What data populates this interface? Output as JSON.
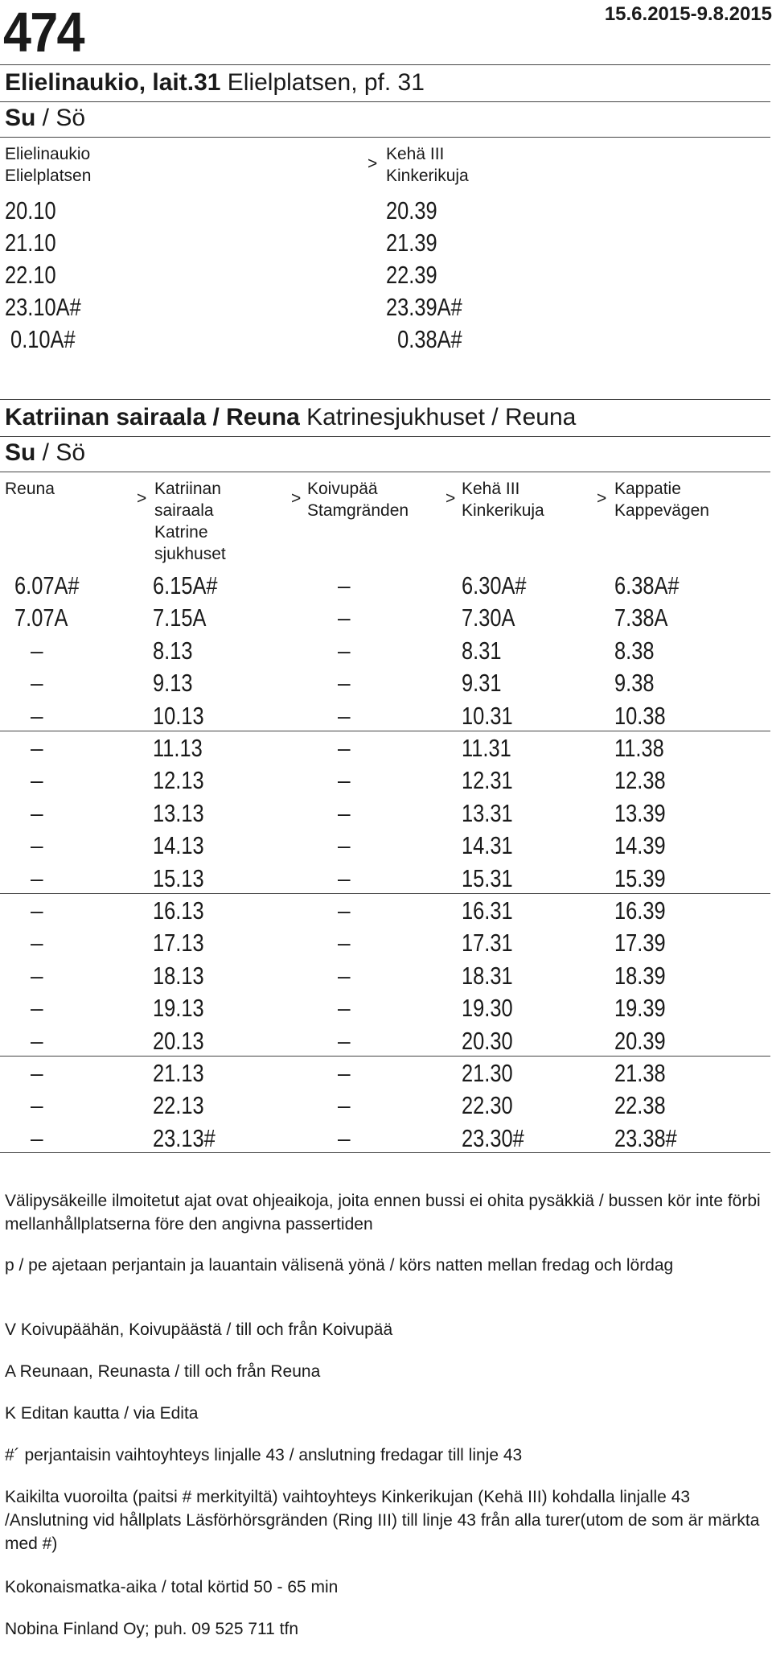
{
  "header": {
    "route_number": "474",
    "validity": "15.6.2015-9.8.2015"
  },
  "section1": {
    "stop_title_bold": "Elielinaukio, lait.31",
    "stop_title_rest": " Elielplatsen, pf. 31",
    "day_bold": "Su",
    "day_rest": " / Sö",
    "columns": [
      {
        "line1": "Elielinaukio",
        "line2": "Elielplatsen"
      },
      {
        "line1": "Kehä III",
        "line2": "Kinkerikuja"
      }
    ],
    "arrow": ">",
    "rows": [
      [
        "20.10",
        "20.39"
      ],
      [
        "21.10",
        "21.39"
      ],
      [
        "22.10",
        "22.39"
      ],
      [
        "23.10A#",
        "23.39A#"
      ],
      [
        " 0.10A#",
        "  0.38A#"
      ]
    ]
  },
  "section2": {
    "stop_title_bold": "Katriinan sairaala / Reuna",
    "stop_title_rest": " Katrinesjukhuset / Reuna",
    "day_bold": "Su",
    "day_rest": " / Sö",
    "columns": [
      {
        "lines": [
          "Reuna"
        ]
      },
      {
        "lines": [
          "Katriinan",
          "sairaala",
          "Katrine",
          "sjukhuset"
        ]
      },
      {
        "lines": [
          "Koivupää",
          "Stamgränden"
        ]
      },
      {
        "lines": [
          "Kehä III",
          "Kinkerikuja"
        ]
      },
      {
        "lines": [
          "Kappatie",
          "Kappevägen"
        ]
      }
    ],
    "arrow": ">",
    "dash": "–",
    "rows": [
      [
        "6.07A#",
        "6.15A#",
        "–",
        "6.30A#",
        "6.38A#"
      ],
      [
        "7.07A",
        "7.15A",
        "–",
        "7.30A",
        "7.38A"
      ],
      [
        "–",
        "8.13",
        "–",
        "8.31",
        "8.38"
      ],
      [
        "–",
        "9.13",
        "–",
        "9.31",
        "9.38"
      ],
      [
        "–",
        "10.13",
        "–",
        "10.31",
        "10.38"
      ],
      [
        "–",
        "11.13",
        "–",
        "11.31",
        "11.38"
      ],
      [
        "–",
        "12.13",
        "–",
        "12.31",
        "12.38"
      ],
      [
        "–",
        "13.13",
        "–",
        "13.31",
        "13.39"
      ],
      [
        "–",
        "14.13",
        "–",
        "14.31",
        "14.39"
      ],
      [
        "–",
        "15.13",
        "–",
        "15.31",
        "15.39"
      ],
      [
        "–",
        "16.13",
        "–",
        "16.31",
        "16.39"
      ],
      [
        "–",
        "17.13",
        "–",
        "17.31",
        "17.39"
      ],
      [
        "–",
        "18.13",
        "–",
        "18.31",
        "18.39"
      ],
      [
        "–",
        "19.13",
        "–",
        "19.30",
        "19.39"
      ],
      [
        "–",
        "20.13",
        "–",
        "20.30",
        "20.39"
      ],
      [
        "–",
        "21.13",
        "–",
        "21.30",
        "21.38"
      ],
      [
        "–",
        "22.13",
        "–",
        "22.30",
        "22.38"
      ],
      [
        "–",
        "23.13#",
        "–",
        "23.30#",
        "23.38#"
      ]
    ]
  },
  "notes": [
    "Välipysäkeille ilmoitetut ajat ovat ohjeaikoja, joita ennen bussi ei ohita pysäkkiä / bussen kör inte förbi mellanhållplatserna före den angivna passertiden",
    "p / pe ajetaan perjantain ja lauantain välisenä yönä / körs natten mellan fredag och lördag",
    "V Koivupäähän, Koivupäästä / till och från Koivupää",
    "A Reunaan, Reunasta / till och från Reuna",
    "K Editan kautta / via Edita",
    "#´ perjantaisin vaihtoyhteys linjalle 43 / anslutning fredagar till linje 43",
    "Kaikilta vuoroilta (paitsi # merkityiltä) vaihtoyhteys Kinkerikujan (Kehä III) kohdalla linjalle 43 /Anslutning vid hållplats Läsförhörsgränden (Ring III) till linje 43 från alla turer(utom de som är märkta med #)",
    "Kokonaismatka-aika / total körtid 50 - 65 min",
    "Nobina Finland Oy; puh. 09 525 711 tfn"
  ]
}
